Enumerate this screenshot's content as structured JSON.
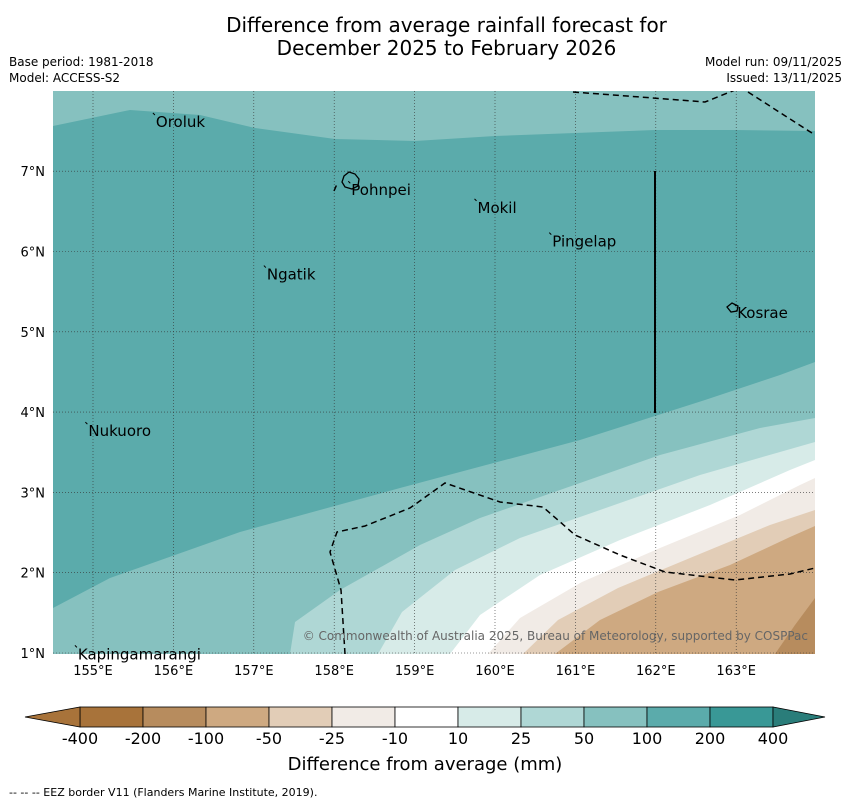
{
  "title_line1": "Difference from average rainfall forecast for",
  "title_line2": "December 2025 to February 2026",
  "base_period": "Base period: 1981-2018",
  "model": "Model: ACCESS-S2",
  "model_run": "Model run: 09/11/2025",
  "issued": "Issued: 13/11/2025",
  "axes": {
    "x_ticks": [
      "155°E",
      "156°E",
      "157°E",
      "158°E",
      "159°E",
      "160°E",
      "161°E",
      "162°E",
      "163°E"
    ],
    "y_ticks": [
      "7°N",
      "6°N",
      "5°N",
      "4°N",
      "3°N",
      "2°N",
      "1°N"
    ]
  },
  "places": [
    {
      "name": "Oroluk",
      "lon": 155.77,
      "lat": 7.7
    },
    {
      "name": "Pohnpei",
      "lon": 158.2,
      "lat": 6.85
    },
    {
      "name": "Mokil",
      "lon": 159.77,
      "lat": 6.63
    },
    {
      "name": "Pingelap",
      "lon": 160.7,
      "lat": 6.21
    },
    {
      "name": "Ngatik",
      "lon": 157.15,
      "lat": 5.8
    },
    {
      "name": "Kosrae",
      "lon": 163.0,
      "lat": 5.32
    },
    {
      "name": "Nukuoro",
      "lon": 154.93,
      "lat": 3.85
    },
    {
      "name": "Kapingamarangi",
      "lon": 154.8,
      "lat": 1.07
    }
  ],
  "copyright": "© Commonwealth of Australia 2025, Bureau of Meteorology, supported by COSPPac",
  "colorbar": {
    "ticks": [
      "-400",
      "-200",
      "-100",
      "-50",
      "-25",
      "-10",
      "10",
      "25",
      "50",
      "100",
      "200",
      "400"
    ],
    "colors": [
      "#A8733A",
      "#B78C5E",
      "#CEA981",
      "#E2CDB7",
      "#F1EBE6",
      "#FFFFFF",
      "#D7EBE8",
      "#AFD7D5",
      "#86C1BF",
      "#5BABAB",
      "#399896"
    ],
    "label": "Difference from average (mm)"
  },
  "footnote": "--  --  -- EEZ border V11 (Flanders Marine Institute, 2019)."
}
